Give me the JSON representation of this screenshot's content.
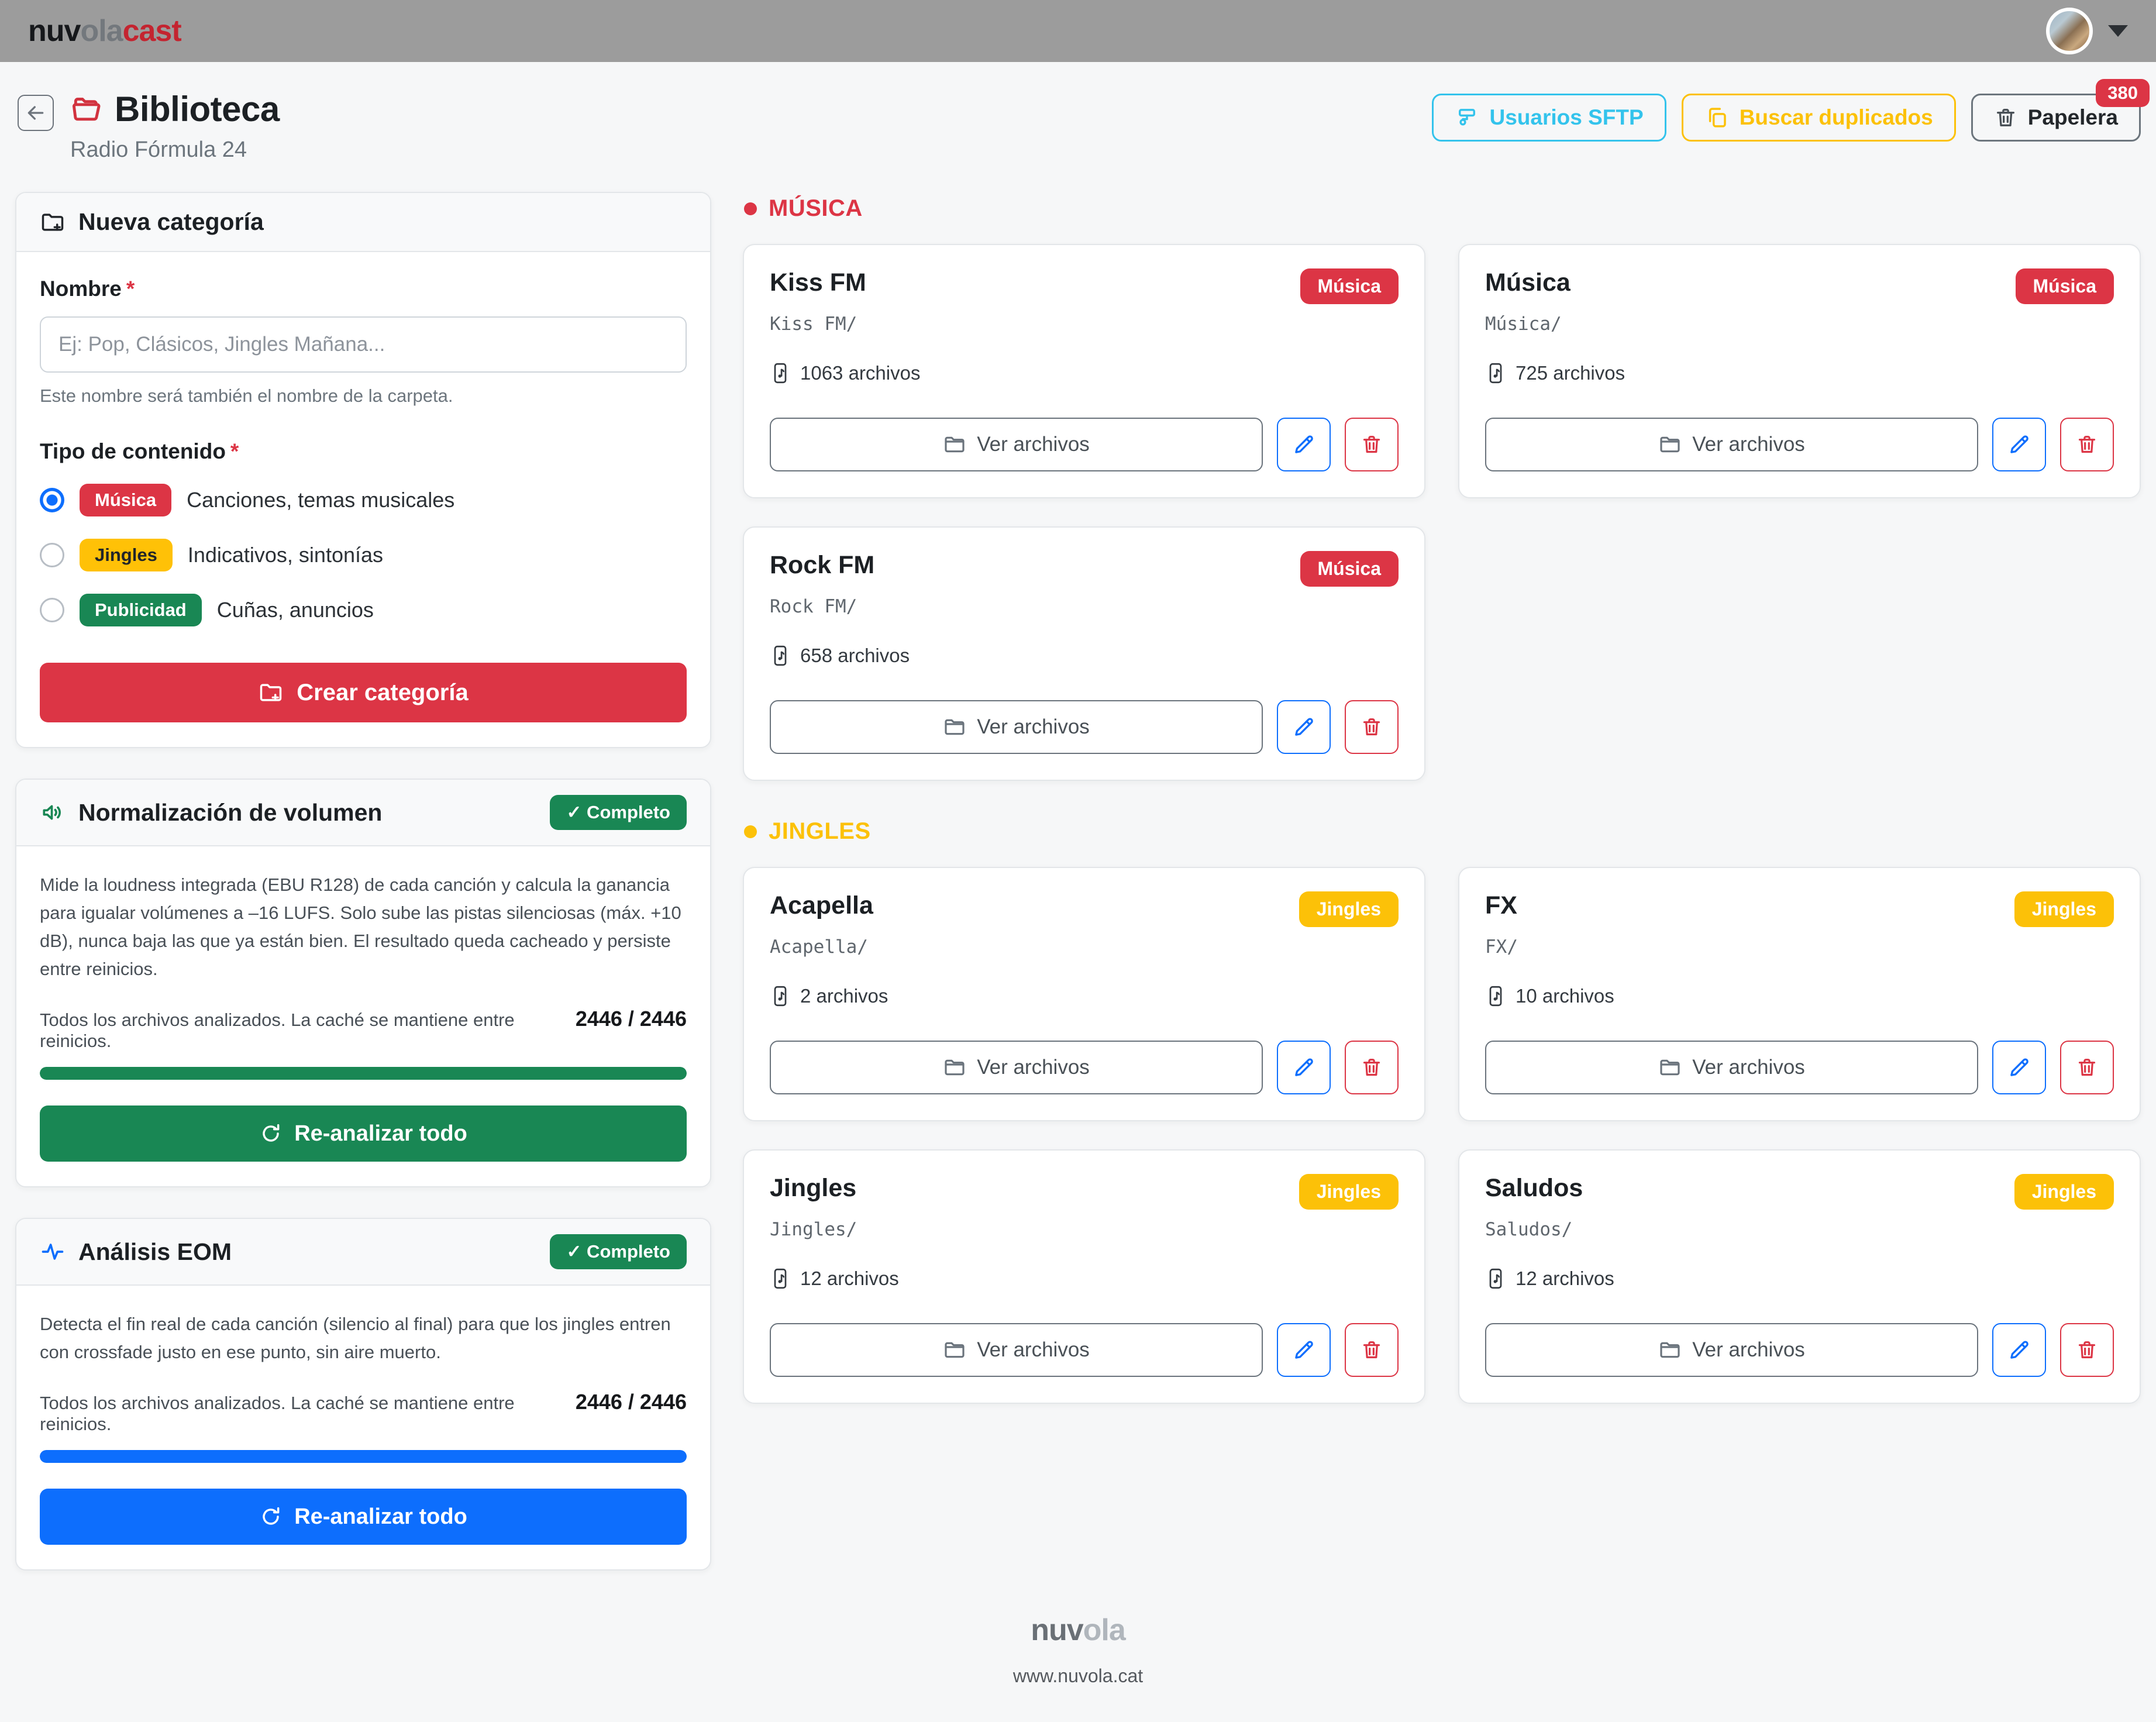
{
  "navbar": {
    "logo": {
      "part1": "nuv",
      "part2": "ola",
      "part3": "cast"
    }
  },
  "header": {
    "title": "Biblioteca",
    "subtitle": "Radio Fórmula 24",
    "actions": {
      "sftp_label": "Usuarios SFTP",
      "duplicates_label": "Buscar duplicados",
      "trash_label": "Papelera",
      "trash_badge": "380"
    }
  },
  "form": {
    "title": "Nueva categoría",
    "name_label": "Nombre",
    "required_mark": "*",
    "name_placeholder": "Ej: Pop, Clásicos, Jingles Mañana...",
    "name_help": "Este nombre será también el nombre de la carpeta.",
    "type_label": "Tipo de contenido",
    "options": [
      {
        "badge": "Música",
        "badge_color": "#dc3545",
        "badge_text_color": "#ffffff",
        "description": "Canciones, temas musicales",
        "selected": true
      },
      {
        "badge": "Jingles",
        "badge_color": "#ffc107",
        "badge_text_color": "#212529",
        "description": "Indicativos, sintonías",
        "selected": false
      },
      {
        "badge": "Publicidad",
        "badge_color": "#198754",
        "badge_text_color": "#ffffff",
        "description": "Cuñas, anuncios",
        "selected": false
      }
    ],
    "submit_label": "Crear categoría"
  },
  "panels": [
    {
      "title": "Normalización de volumen",
      "status_badge": "✓ Completo",
      "description": "Mide la loudness integrada (EBU R128) de cada canción y calcula la ganancia para igualar volúmenes a –16 LUFS. Solo sube las pistas silenciosas (máx. +10 dB), nunca baja las que ya están bien. El resultado queda cacheado y persiste entre reinicios.",
      "status_text": "Todos los archivos analizados. La caché se mantiene entre reinicios.",
      "progress_label": "2446 / 2446",
      "progress_pct": 100,
      "accent": "#198754",
      "button_label": "Re-analizar todo"
    },
    {
      "title": "Análisis EOM",
      "status_badge": "✓ Completo",
      "description": "Detecta el fin real de cada canción (silencio al final) para que los jingles entren con crossfade justo en ese punto, sin aire muerto.",
      "status_text": "Todos los archivos analizados. La caché se mantiene entre reinicios.",
      "progress_label": "2446 / 2446",
      "progress_pct": 100,
      "accent": "#0d6efd",
      "button_label": "Re-analizar todo"
    }
  ],
  "sections": [
    {
      "label": "MÚSICA",
      "color": "#dc3545",
      "badge_color": "#dc3545",
      "cards": [
        {
          "name": "Kiss FM",
          "path": "Kiss FM/",
          "files": "1063 archivos",
          "badge": "Música"
        },
        {
          "name": "Música",
          "path": "Música/",
          "files": "725 archivos",
          "badge": "Música"
        },
        {
          "name": "Rock FM",
          "path": "Rock FM/",
          "files": "658 archivos",
          "badge": "Música"
        }
      ]
    },
    {
      "label": "JINGLES",
      "color": "#fcc108",
      "badge_color": "#fcc108",
      "cards": [
        {
          "name": "Acapella",
          "path": "Acapella/",
          "files": "2 archivos",
          "badge": "Jingles"
        },
        {
          "name": "FX",
          "path": "FX/",
          "files": "10 archivos",
          "badge": "Jingles"
        },
        {
          "name": "Jingles",
          "path": "Jingles/",
          "files": "12 archivos",
          "badge": "Jingles"
        },
        {
          "name": "Saludos",
          "path": "Saludos/",
          "files": "12 archivos",
          "badge": "Jingles"
        }
      ]
    }
  ],
  "card_actions": {
    "view_label": "Ver archivos"
  },
  "footer": {
    "logo_part1": "nuv",
    "logo_part2": "ola",
    "link": "www.nuvola.cat"
  }
}
